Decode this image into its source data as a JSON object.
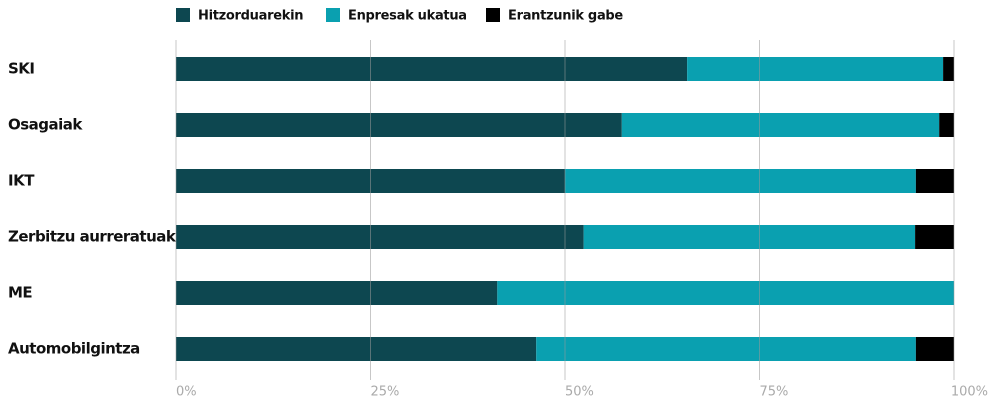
{
  "chart_data": {
    "type": "stacked-barh",
    "categories": [
      "SKI",
      "Osagaiak",
      "IKT",
      "Zerbitzu aurreratuak",
      "ME",
      "Automobilgintza"
    ],
    "series": [
      {
        "name": "Hitzorduarekin",
        "color": "#0d4750",
        "values": [
          65.7,
          57.3,
          50.0,
          52.4,
          41.3,
          46.3
        ]
      },
      {
        "name": "Enpresak ukatua",
        "color": "#0aa0b0",
        "values": [
          32.9,
          40.8,
          45.1,
          42.6,
          58.7,
          48.8
        ]
      },
      {
        "name": "Erantzunik gabe",
        "color": "#000000",
        "values": [
          1.4,
          1.9,
          4.9,
          5.0,
          0,
          4.9
        ]
      }
    ],
    "xlim": [
      0,
      100
    ],
    "xticks": [
      {
        "value": 0,
        "label": "0%"
      },
      {
        "value": 25,
        "label": "25%"
      },
      {
        "value": 50,
        "label": "50%"
      },
      {
        "value": 75,
        "label": "75%"
      },
      {
        "value": 100,
        "label": "100%"
      }
    ],
    "grid": true,
    "legend": "top"
  }
}
